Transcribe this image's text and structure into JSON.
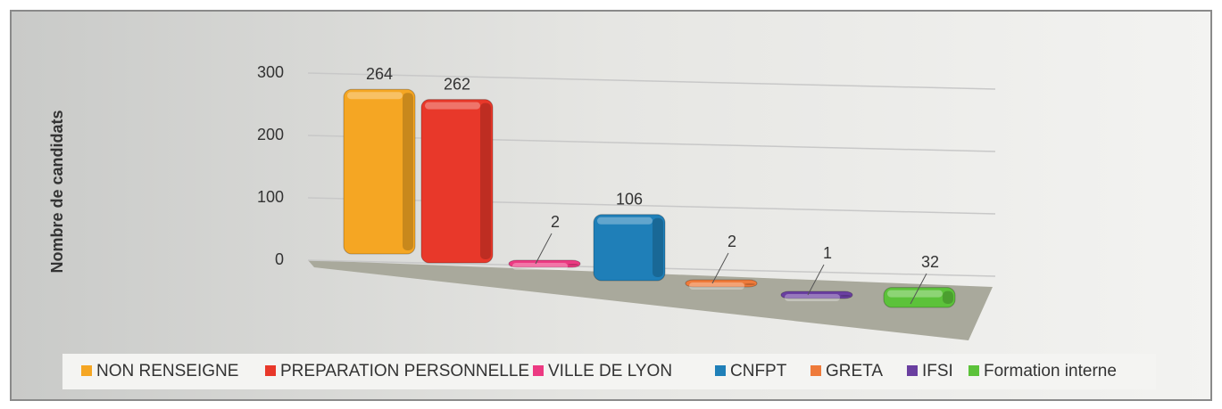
{
  "chart_data": {
    "type": "bar3d",
    "y_label": "Nombre de candidats",
    "ylim": [
      0,
      300
    ],
    "yticks": [
      0,
      100,
      200,
      300
    ],
    "grid": true,
    "legend": "bottom",
    "series": [
      {
        "name": "NON RENSEIGNE",
        "color": "#f5a623",
        "values": [
          264
        ]
      },
      {
        "name": "PREPARATION PERSONNELLE",
        "color": "#e8382a",
        "values": [
          262
        ]
      },
      {
        "name": "VILLE DE LYON",
        "color": "#ec3a82",
        "values": [
          2
        ]
      },
      {
        "name": "CNFPT",
        "color": "#1f7fb8",
        "values": [
          106
        ]
      },
      {
        "name": "GRETA",
        "color": "#ee7a3a",
        "values": [
          2
        ]
      },
      {
        "name": "IFSI",
        "color": "#6a3fa0",
        "values": [
          1
        ]
      },
      {
        "name": "Formation interne",
        "color": "#5cc23a",
        "values": [
          32
        ]
      }
    ]
  }
}
